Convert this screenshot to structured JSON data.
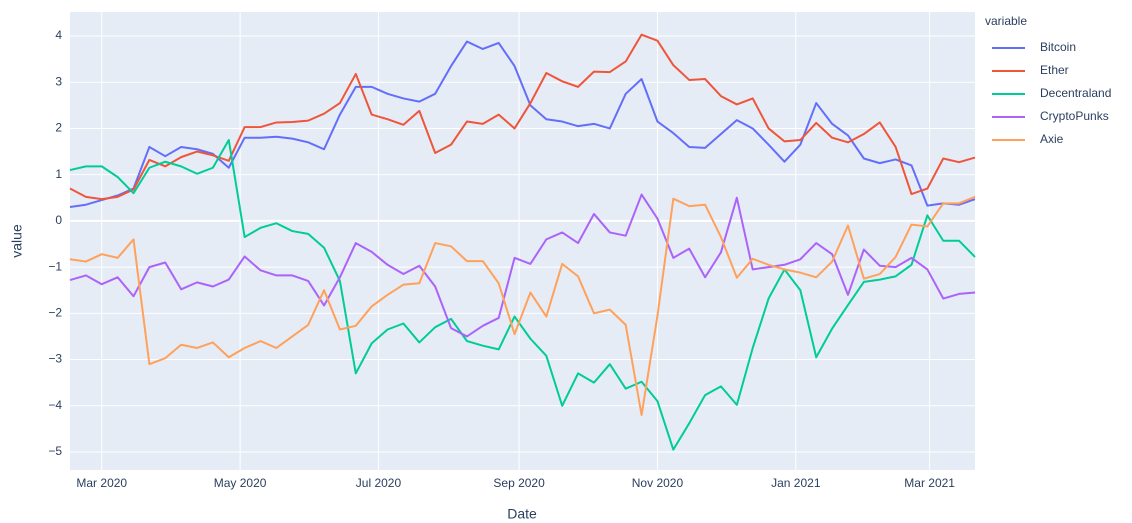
{
  "chart_data": {
    "type": "line",
    "xlabel": "Date",
    "ylabel": "value",
    "legend_title": "variable",
    "legend": "outside-right",
    "grid": true,
    "x": [
      "2020-02-16",
      "2020-02-23",
      "2020-03-01",
      "2020-03-08",
      "2020-03-15",
      "2020-03-22",
      "2020-03-29",
      "2020-04-05",
      "2020-04-12",
      "2020-04-19",
      "2020-04-26",
      "2020-05-03",
      "2020-05-10",
      "2020-05-17",
      "2020-05-24",
      "2020-05-31",
      "2020-06-07",
      "2020-06-14",
      "2020-06-21",
      "2020-06-28",
      "2020-07-05",
      "2020-07-12",
      "2020-07-19",
      "2020-07-26",
      "2020-08-02",
      "2020-08-09",
      "2020-08-16",
      "2020-08-23",
      "2020-08-30",
      "2020-09-06",
      "2020-09-13",
      "2020-09-20",
      "2020-09-27",
      "2020-10-04",
      "2020-10-11",
      "2020-10-18",
      "2020-10-25",
      "2020-11-01",
      "2020-11-08",
      "2020-11-15",
      "2020-11-22",
      "2020-11-29",
      "2020-12-06",
      "2020-12-13",
      "2020-12-20",
      "2020-12-27",
      "2021-01-03",
      "2021-01-10",
      "2021-01-17",
      "2021-01-24",
      "2021-01-31",
      "2021-02-07",
      "2021-02-14",
      "2021-02-21",
      "2021-02-28",
      "2021-03-07",
      "2021-03-14",
      "2021-03-21"
    ],
    "xlim": [
      "2020-02-16",
      "2021-03-21"
    ],
    "xticks": [
      {
        "value": "2020-03-01",
        "label": "Mar 2020"
      },
      {
        "value": "2020-05-01",
        "label": "May 2020"
      },
      {
        "value": "2020-07-01",
        "label": "Jul 2020"
      },
      {
        "value": "2020-09-01",
        "label": "Sep 2020"
      },
      {
        "value": "2020-11-01",
        "label": "Nov 2020"
      },
      {
        "value": "2021-01-01",
        "label": "Jan 2021"
      },
      {
        "value": "2021-03-01",
        "label": "Mar 2021"
      }
    ],
    "ylim": [
      -5.39,
      4.52
    ],
    "yticks": [
      {
        "value": -5,
        "label": "−5"
      },
      {
        "value": -4,
        "label": "−4"
      },
      {
        "value": -3,
        "label": "−3"
      },
      {
        "value": -2,
        "label": "−2"
      },
      {
        "value": -1,
        "label": "−1"
      },
      0,
      1,
      2,
      3,
      4
    ],
    "series": [
      {
        "name": "Bitcoin",
        "color": "#636efa",
        "values": [
          0.3,
          0.35,
          0.45,
          0.55,
          0.7,
          1.6,
          1.4,
          1.6,
          1.55,
          1.45,
          1.15,
          1.8,
          1.8,
          1.82,
          1.78,
          1.7,
          1.55,
          2.3,
          2.9,
          2.9,
          2.75,
          2.65,
          2.58,
          2.75,
          3.35,
          3.88,
          3.72,
          3.85,
          3.35,
          2.5,
          2.2,
          2.15,
          2.05,
          2.1,
          2.0,
          2.75,
          3.07,
          2.15,
          1.9,
          1.6,
          1.58,
          1.88,
          2.18,
          2.0,
          1.65,
          1.28,
          1.65,
          2.55,
          2.1,
          1.85,
          1.35,
          1.25,
          1.33,
          1.2,
          0.33,
          0.38,
          0.35,
          0.47
        ]
      },
      {
        "name": "Ether",
        "color": "#EF553B",
        "values": [
          0.7,
          0.52,
          0.47,
          0.52,
          0.68,
          1.32,
          1.18,
          1.38,
          1.5,
          1.42,
          1.3,
          2.03,
          2.03,
          2.13,
          2.14,
          2.17,
          2.32,
          2.55,
          3.18,
          2.3,
          2.2,
          2.08,
          2.38,
          1.47,
          1.65,
          2.15,
          2.1,
          2.3,
          2.0,
          2.55,
          3.2,
          3.02,
          2.9,
          3.23,
          3.22,
          3.45,
          4.03,
          3.9,
          3.37,
          3.05,
          3.07,
          2.7,
          2.52,
          2.65,
          2.0,
          1.72,
          1.75,
          2.12,
          1.8,
          1.7,
          1.88,
          2.13,
          1.6,
          0.58,
          0.7,
          1.35,
          1.27,
          1.37
        ]
      },
      {
        "name": "Decentraland",
        "color": "#00cc96",
        "values": [
          1.1,
          1.18,
          1.18,
          0.95,
          0.6,
          1.15,
          1.28,
          1.18,
          1.02,
          1.15,
          1.75,
          -0.35,
          -0.15,
          -0.05,
          -0.22,
          -0.28,
          -0.58,
          -1.3,
          -3.3,
          -2.65,
          -2.35,
          -2.22,
          -2.63,
          -2.3,
          -2.12,
          -2.6,
          -2.7,
          -2.78,
          -2.07,
          -2.55,
          -2.92,
          -4.0,
          -3.3,
          -3.5,
          -3.1,
          -3.63,
          -3.48,
          -3.9,
          -4.95,
          -4.38,
          -3.77,
          -3.58,
          -3.98,
          -2.75,
          -1.68,
          -1.05,
          -1.5,
          -2.95,
          -2.33,
          -1.82,
          -1.32,
          -1.27,
          -1.2,
          -0.95,
          0.12,
          -0.43,
          -0.43,
          -0.78
        ]
      },
      {
        "name": "CryptoPunks",
        "color": "#ab63fa",
        "values": [
          -1.28,
          -1.18,
          -1.37,
          -1.22,
          -1.63,
          -1.0,
          -0.9,
          -1.48,
          -1.33,
          -1.42,
          -1.27,
          -0.77,
          -1.07,
          -1.18,
          -1.18,
          -1.3,
          -1.83,
          -1.22,
          -0.48,
          -0.67,
          -0.95,
          -1.15,
          -0.97,
          -1.42,
          -2.32,
          -2.5,
          -2.27,
          -2.1,
          -0.8,
          -0.93,
          -0.4,
          -0.25,
          -0.48,
          0.15,
          -0.25,
          -0.32,
          0.57,
          0.05,
          -0.8,
          -0.6,
          -1.22,
          -0.68,
          0.5,
          -1.05,
          -1.0,
          -0.95,
          -0.83,
          -0.48,
          -0.72,
          -1.6,
          -0.62,
          -0.97,
          -1.0,
          -0.8,
          -1.05,
          -1.68,
          -1.58,
          -1.55
        ]
      },
      {
        "name": "Axie",
        "color": "#FFA15A",
        "values": [
          -0.83,
          -0.88,
          -0.72,
          -0.8,
          -0.4,
          -3.1,
          -2.97,
          -2.68,
          -2.75,
          -2.63,
          -2.95,
          -2.75,
          -2.6,
          -2.75,
          -2.5,
          -2.25,
          -1.5,
          -2.35,
          -2.27,
          -1.85,
          -1.6,
          -1.38,
          -1.35,
          -0.48,
          -0.55,
          -0.87,
          -0.87,
          -1.35,
          -2.45,
          -1.55,
          -2.07,
          -0.93,
          -1.2,
          -2.0,
          -1.92,
          -2.25,
          -4.2,
          -2.05,
          0.48,
          0.32,
          0.35,
          -0.35,
          -1.23,
          -0.82,
          -0.95,
          -1.05,
          -1.12,
          -1.22,
          -0.88,
          -0.1,
          -1.25,
          -1.15,
          -0.78,
          -0.08,
          -0.12,
          0.38,
          0.38,
          0.52
        ]
      }
    ]
  }
}
